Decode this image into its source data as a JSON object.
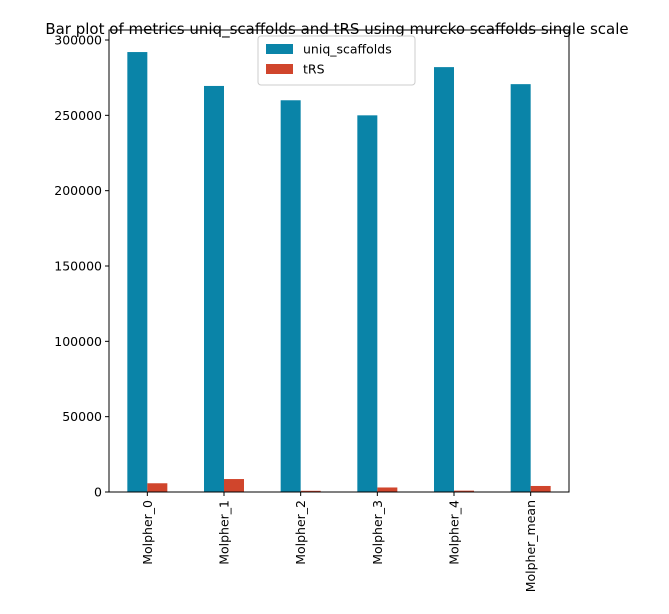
{
  "chart_data": {
    "type": "bar",
    "title": "Bar plot of metrics uniq_scaffolds and tRS using murcko scaffolds single scale",
    "xlabel": "",
    "ylabel": "",
    "categories": [
      "Molpher_0",
      "Molpher_1",
      "Molpher_2",
      "Molpher_3",
      "Molpher_4",
      "Molpher_mean"
    ],
    "series": [
      {
        "name": "uniq_scaffolds",
        "color": "#0a84a8",
        "values": [
          292000,
          269500,
          260000,
          250000,
          282000,
          270700
        ]
      },
      {
        "name": "tRS",
        "color": "#d0452c",
        "values": [
          5800,
          8600,
          800,
          3000,
          900,
          4000
        ]
      }
    ],
    "ylim": [
      0,
      300000
    ],
    "yticks": [
      0,
      50000,
      100000,
      150000,
      200000,
      250000,
      300000
    ],
    "ytick_labels": [
      "0",
      "50000",
      "100000",
      "150000",
      "200000",
      "250000",
      "300000"
    ],
    "grid": false,
    "legend_position": "top-center"
  }
}
